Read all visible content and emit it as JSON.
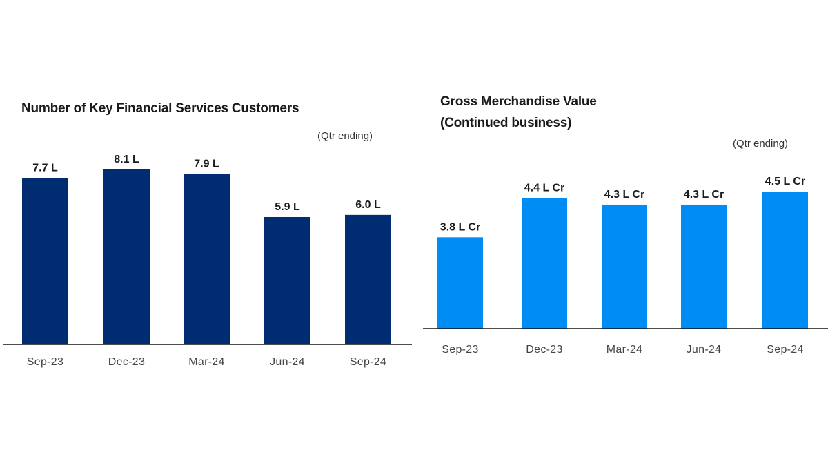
{
  "chart_data": [
    {
      "type": "bar",
      "title": "Number of Key Financial Services Customers",
      "note": "(Qtr ending)",
      "categories": [
        "Sep-23",
        "Dec-23",
        "Mar-24",
        "Jun-24",
        "Sep-24"
      ],
      "values": [
        7.7,
        8.1,
        7.9,
        5.9,
        6.0
      ],
      "data_labels": [
        "7.7 L",
        "8.1 L",
        "7.9 L",
        "5.9 L",
        "6.0 L"
      ],
      "unit": "L",
      "xlabel": "",
      "ylabel": "",
      "ylim": [
        0,
        8.1
      ],
      "grid": false,
      "color": "#002D72"
    },
    {
      "type": "bar",
      "title": "Gross Merchandise Value\n(Continued business)",
      "title_lines": [
        "Gross Merchandise Value",
        "(Continued business)"
      ],
      "note": "(Qtr ending)",
      "categories": [
        "Sep-23",
        "Dec-23",
        "Mar-24",
        "Jun-24",
        "Sep-24"
      ],
      "values": [
        3.8,
        4.4,
        4.3,
        4.3,
        4.5
      ],
      "data_labels": [
        "3.8 L Cr",
        "4.4 L Cr",
        "4.3 L Cr",
        "4.3 L Cr",
        "4.5 L Cr"
      ],
      "unit": "L Cr",
      "xlabel": "",
      "ylabel": "",
      "ylim": [
        2.4,
        4.5
      ],
      "grid": false,
      "color": "#008CF5"
    }
  ]
}
